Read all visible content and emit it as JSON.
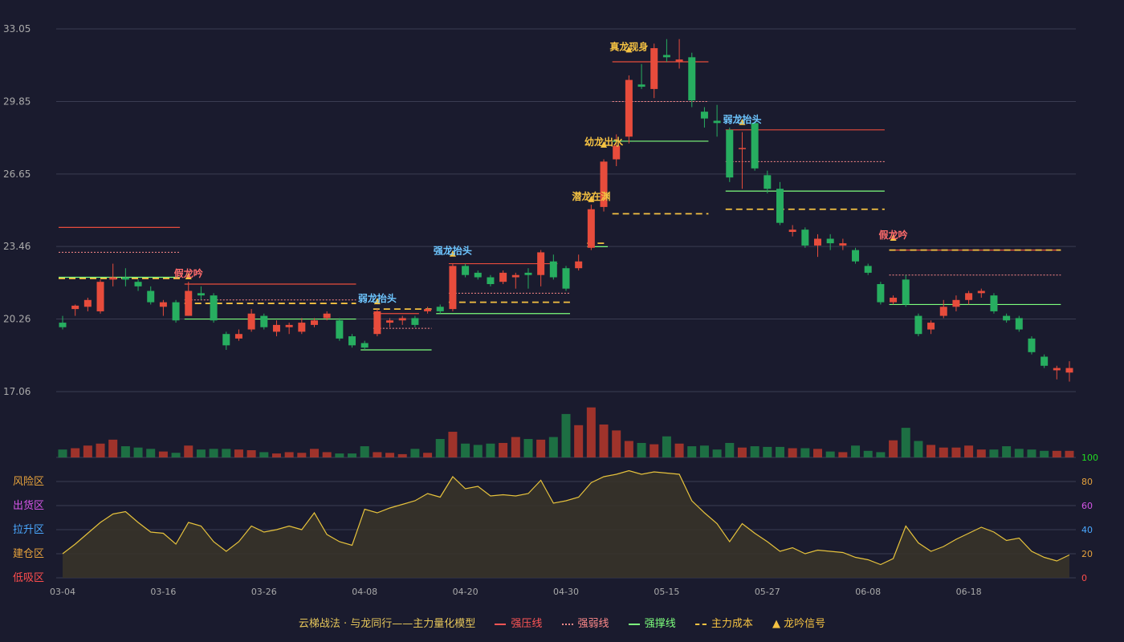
{
  "chart_data": {
    "type": "candlestick",
    "price_ticks": [
      "33.05",
      "29.85",
      "26.65",
      "23.46",
      "20.26",
      "17.06"
    ],
    "price_range": [
      17.06,
      33.05
    ],
    "volume_max": 100,
    "indicator_ticks": [
      {
        "value": 100,
        "label": "100",
        "color": "#22dd22"
      },
      {
        "value": 80,
        "label": "80",
        "color": "#e6a23c"
      },
      {
        "value": 60,
        "label": "60",
        "color": "#d655e8"
      },
      {
        "value": 40,
        "label": "40",
        "color": "#4aa8ff"
      },
      {
        "value": 20,
        "label": "20",
        "color": "#e6a23c"
      },
      {
        "value": 0,
        "label": "0",
        "color": "#ff4d4d"
      }
    ],
    "zones": [
      {
        "label": "风险区",
        "value": 80,
        "color": "#e6a23c"
      },
      {
        "label": "出货区",
        "value": 70,
        "color": "#d655e8"
      },
      {
        "label": "拉升区",
        "value": 40,
        "color": "#4aa8ff"
      },
      {
        "label": "建仓区",
        "value": 20,
        "color": "#e6a23c"
      },
      {
        "label": "低吸区",
        "value": 0,
        "color": "#ff4d4d"
      }
    ],
    "dates": [
      "03-04",
      "03-16",
      "03-26",
      "04-08",
      "04-20",
      "04-30",
      "05-15",
      "05-27",
      "06-08",
      "06-18"
    ],
    "date_index": [
      0,
      8,
      16,
      24,
      32,
      40,
      48,
      56,
      64,
      72
    ],
    "candles": [
      [
        20.1,
        19.9,
        20.4,
        19.8
      ],
      [
        20.7,
        20.85,
        20.9,
        20.4
      ],
      [
        20.8,
        21.1,
        21.2,
        20.6
      ],
      [
        20.6,
        21.9,
        22.0,
        20.5
      ],
      [
        22.0,
        22.1,
        22.7,
        21.7
      ],
      [
        22.1,
        22.0,
        22.5,
        21.7
      ],
      [
        21.9,
        21.7,
        22.0,
        21.5
      ],
      [
        21.5,
        21.0,
        21.7,
        20.9
      ],
      [
        20.8,
        21.0,
        21.1,
        20.4
      ],
      [
        21.0,
        20.2,
        21.1,
        20.1
      ],
      [
        20.4,
        21.5,
        21.9,
        20.4
      ],
      [
        21.4,
        21.3,
        21.7,
        21.1
      ],
      [
        21.3,
        20.2,
        21.4,
        20.1
      ],
      [
        19.6,
        19.1,
        19.7,
        18.9
      ],
      [
        19.4,
        19.6,
        19.8,
        19.3
      ],
      [
        19.8,
        20.5,
        20.7,
        19.7
      ],
      [
        20.4,
        19.9,
        20.5,
        19.8
      ],
      [
        19.7,
        20.0,
        20.2,
        19.5
      ],
      [
        19.9,
        20.0,
        20.1,
        19.6
      ],
      [
        19.7,
        20.1,
        20.3,
        19.6
      ],
      [
        20.0,
        20.2,
        20.3,
        19.9
      ],
      [
        20.3,
        20.5,
        20.6,
        20.2
      ],
      [
        20.2,
        19.4,
        20.3,
        19.3
      ],
      [
        19.5,
        19.1,
        19.6,
        19.0
      ],
      [
        19.2,
        19.0,
        19.3,
        18.9
      ],
      [
        19.6,
        20.6,
        20.7,
        19.5
      ],
      [
        20.1,
        20.2,
        20.3,
        19.9
      ],
      [
        20.2,
        20.3,
        20.4,
        20.0
      ],
      [
        20.3,
        20.0,
        20.4,
        19.9
      ],
      [
        20.6,
        20.7,
        20.8,
        20.5
      ],
      [
        20.8,
        20.6,
        20.9,
        20.5
      ],
      [
        20.7,
        22.6,
        22.7,
        20.6
      ],
      [
        22.6,
        22.2,
        22.7,
        22.1
      ],
      [
        22.3,
        22.1,
        22.4,
        22.0
      ],
      [
        22.1,
        21.8,
        22.2,
        21.7
      ],
      [
        21.9,
        22.3,
        22.4,
        21.8
      ],
      [
        22.1,
        22.2,
        22.3,
        21.6
      ],
      [
        22.3,
        22.2,
        22.5,
        21.6
      ],
      [
        22.2,
        23.2,
        23.3,
        21.7
      ],
      [
        22.8,
        22.1,
        23.1,
        22.0
      ],
      [
        22.5,
        21.6,
        22.6,
        21.5
      ],
      [
        22.5,
        22.8,
        23.1,
        22.4
      ],
      [
        23.4,
        25.1,
        25.3,
        23.3
      ],
      [
        25.2,
        27.2,
        27.3,
        25.0
      ],
      [
        27.3,
        27.9,
        28.4,
        27.0
      ],
      [
        28.3,
        30.8,
        31.0,
        28.0
      ],
      [
        30.6,
        30.5,
        31.5,
        30.4
      ],
      [
        30.4,
        32.2,
        32.4,
        30.0
      ],
      [
        31.9,
        31.8,
        32.6,
        31.6
      ],
      [
        31.6,
        31.7,
        32.6,
        31.3
      ],
      [
        31.8,
        29.9,
        32.0,
        29.6
      ],
      [
        29.4,
        29.1,
        29.6,
        28.7
      ],
      [
        29.0,
        28.9,
        29.7,
        28.3
      ],
      [
        28.6,
        26.5,
        28.7,
        26.3
      ],
      [
        27.8,
        27.8,
        28.5,
        26.0
      ],
      [
        28.9,
        26.9,
        29.0,
        26.8
      ],
      [
        26.6,
        26.0,
        26.8,
        25.8
      ],
      [
        26.0,
        24.5,
        26.3,
        24.4
      ],
      [
        24.1,
        24.2,
        24.4,
        23.9
      ],
      [
        24.2,
        23.5,
        24.3,
        23.4
      ],
      [
        23.5,
        23.8,
        24.0,
        23.0
      ],
      [
        23.8,
        23.6,
        24.0,
        23.3
      ],
      [
        23.5,
        23.6,
        23.8,
        23.3
      ],
      [
        23.3,
        22.8,
        23.4,
        22.7
      ],
      [
        22.6,
        22.3,
        22.7,
        22.2
      ],
      [
        21.8,
        21.0,
        21.9,
        20.9
      ],
      [
        21.0,
        21.2,
        21.3,
        20.9
      ],
      [
        22.0,
        20.9,
        22.2,
        20.8
      ],
      [
        20.4,
        19.6,
        20.5,
        19.5
      ],
      [
        19.8,
        20.1,
        20.2,
        19.6
      ],
      [
        20.4,
        20.8,
        21.1,
        20.3
      ],
      [
        20.8,
        21.1,
        21.3,
        20.6
      ],
      [
        21.1,
        21.4,
        21.5,
        20.9
      ],
      [
        21.4,
        21.5,
        21.6,
        21.2
      ],
      [
        21.3,
        20.6,
        21.4,
        20.5
      ],
      [
        20.4,
        20.2,
        20.5,
        20.1
      ],
      [
        20.3,
        19.8,
        20.4,
        19.7
      ],
      [
        19.4,
        18.8,
        19.5,
        18.7
      ],
      [
        18.6,
        18.2,
        18.7,
        18.1
      ],
      [
        18.0,
        18.1,
        18.2,
        17.6
      ],
      [
        17.9,
        18.1,
        18.4,
        17.5
      ]
    ],
    "volumes": [
      12,
      14,
      18,
      21,
      27,
      17,
      15,
      13,
      9,
      7,
      18,
      12,
      13,
      13,
      12,
      11,
      8,
      6,
      8,
      7,
      13,
      8,
      6,
      6,
      17,
      8,
      7,
      5,
      13,
      7,
      28,
      39,
      21,
      19,
      21,
      22,
      31,
      28,
      27,
      31,
      66,
      49,
      76,
      50,
      41,
      25,
      22,
      20,
      32,
      21,
      17,
      18,
      12,
      22,
      15,
      17,
      16,
      16,
      14,
      14,
      13,
      9,
      8,
      18,
      10,
      8,
      26,
      45,
      25,
      19,
      15,
      15,
      18,
      12,
      12,
      17,
      13,
      12,
      10,
      10,
      10
    ],
    "volume_colors_up": "#c0392b",
    "volume_colors_down": "#1e8449",
    "indicator_values": [
      20,
      28,
      37,
      46,
      53,
      55,
      46,
      38,
      37,
      28,
      46,
      43,
      30,
      22,
      30,
      43,
      38,
      40,
      43,
      40,
      54,
      36,
      30,
      27,
      57,
      54,
      58,
      61,
      64,
      70,
      67,
      84,
      74,
      76,
      68,
      69,
      68,
      70,
      81,
      62,
      64,
      67,
      79,
      84,
      86,
      89,
      86,
      88,
      87,
      86,
      64,
      54,
      45,
      30,
      45,
      37,
      30,
      22,
      25,
      20,
      23,
      22,
      21,
      17,
      15,
      11,
      16,
      43,
      29,
      22,
      26,
      32,
      37,
      42,
      38,
      31,
      33,
      22,
      17,
      14,
      19
    ],
    "resistance_lines": [
      {
        "from": 0,
        "to": 9,
        "value": 24.3
      },
      {
        "from": 10,
        "to": 23,
        "value": 21.8
      },
      {
        "from": 25,
        "to": 28,
        "value": 20.5
      },
      {
        "from": 31,
        "to": 39,
        "value": 22.7
      },
      {
        "from": 44,
        "to": 51,
        "value": 31.6
      },
      {
        "from": 53,
        "to": 65,
        "value": 28.6
      },
      {
        "from": 66,
        "to": 79,
        "value": 23.3
      }
    ],
    "weak_lines": [
      {
        "from": 0,
        "to": 9,
        "value": 23.2
      },
      {
        "from": 10,
        "to": 23,
        "value": 21.1
      },
      {
        "from": 25,
        "to": 29,
        "value": 19.85
      },
      {
        "from": 31,
        "to": 40,
        "value": 21.4
      },
      {
        "from": 44,
        "to": 51,
        "value": 29.85
      },
      {
        "from": 53,
        "to": 65,
        "value": 27.2
      },
      {
        "from": 66,
        "to": 79,
        "value": 22.2
      }
    ],
    "support_lines": [
      {
        "from": 0,
        "to": 9,
        "value": 22.1
      },
      {
        "from": 10,
        "to": 23,
        "value": 20.26
      },
      {
        "from": 24,
        "to": 29,
        "value": 18.9
      },
      {
        "from": 30,
        "to": 40,
        "value": 20.5
      },
      {
        "from": 42,
        "to": 43,
        "value": 23.45
      },
      {
        "from": 44,
        "to": 51,
        "value": 28.1
      },
      {
        "from": 53,
        "to": 65,
        "value": 25.9
      },
      {
        "from": 66,
        "to": 79,
        "value": 20.9
      }
    ],
    "cost_lines": [
      {
        "from": 0,
        "to": 9,
        "value": 22.05
      },
      {
        "from": 10,
        "to": 23,
        "value": 20.95
      },
      {
        "from": 25,
        "to": 29,
        "value": 20.7
      },
      {
        "from": 31,
        "to": 40,
        "value": 21.0
      },
      {
        "from": 42,
        "to": 43,
        "value": 23.6
      },
      {
        "from": 44,
        "to": 51,
        "value": 24.9
      },
      {
        "from": 53,
        "to": 65,
        "value": 25.1
      },
      {
        "from": 66,
        "to": 79,
        "value": 23.3
      }
    ],
    "signals": [
      {
        "index": 10,
        "price": 21.8,
        "label": "假龙吟",
        "color": "#ff6b6b"
      },
      {
        "index": 25,
        "price": 20.7,
        "label": "弱龙抬头",
        "color": "#6ec6ff"
      },
      {
        "index": 31,
        "price": 22.8,
        "label": "强龙抬头",
        "color": "#6ec6ff"
      },
      {
        "index": 42,
        "price": 25.2,
        "label": "潜龙在渊",
        "color": "#f5c242"
      },
      {
        "index": 43,
        "price": 27.6,
        "label": "幼龙出水",
        "color": "#f5c242"
      },
      {
        "index": 45,
        "price": 31.8,
        "label": "真龙现身",
        "color": "#f5c242"
      },
      {
        "index": 54,
        "price": 28.6,
        "label": "弱龙抬头",
        "color": "#6ec6ff"
      },
      {
        "index": 66,
        "price": 23.5,
        "label": "假龙吟",
        "color": "#ff6b6b"
      }
    ],
    "colors": {
      "up": "#e74c3c",
      "down": "#27ae60",
      "resistance": "#e74c3c",
      "weak": "#ff8a8a",
      "support": "#7dff7d",
      "cost": "#f5c242",
      "indicator": "#e6c23c",
      "grid": "#3a3c52",
      "axis_text": "#aaaaaa"
    },
    "legend": {
      "title": "云梯战法 · 与龙同行——主力量化模型",
      "items": [
        {
          "label": "强压线",
          "color": "#ff5555",
          "style": "solid"
        },
        {
          "label": "强弱线",
          "color": "#ff8a8a",
          "style": "dotted"
        },
        {
          "label": "强撑线",
          "color": "#7dff7d",
          "style": "solid"
        },
        {
          "label": "主力成本",
          "color": "#f5c242",
          "style": "dashed"
        },
        {
          "label": "龙吟信号",
          "color": "#f5c242",
          "style": "triangle"
        }
      ]
    }
  }
}
